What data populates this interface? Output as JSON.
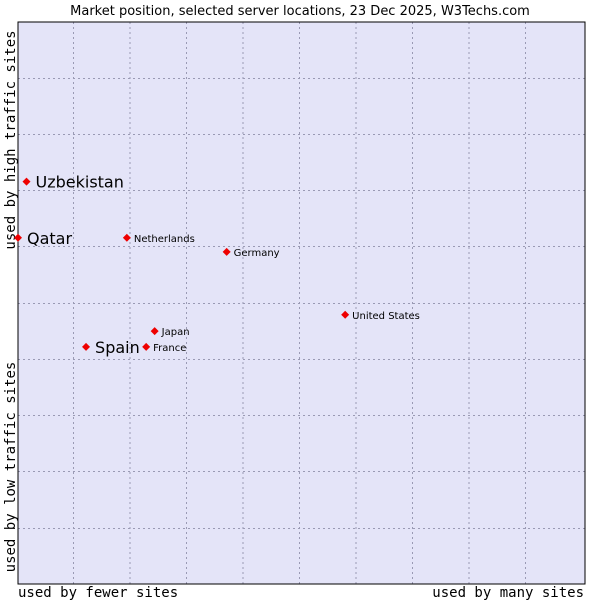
{
  "chart_data": {
    "type": "scatter",
    "title": "Market position, selected server locations, 23 Dec 2025, W3Techs.com",
    "xlabel_left": "used by fewer sites",
    "xlabel_right": "used by many sites",
    "ylabel_top": "used by high traffic sites",
    "ylabel_bottom": "used by low traffic sites",
    "xlim": [
      0,
      100
    ],
    "ylim": [
      0,
      100
    ],
    "grid": true,
    "points": [
      {
        "label": "Uzbekistan",
        "x": 1.5,
        "y": 71.6,
        "emphasis": true
      },
      {
        "label": "Qatar",
        "x": 0.0,
        "y": 61.6,
        "emphasis": true
      },
      {
        "label": "Netherlands",
        "x": 19.2,
        "y": 61.6,
        "emphasis": false
      },
      {
        "label": "Germany",
        "x": 36.8,
        "y": 59.1,
        "emphasis": false
      },
      {
        "label": "United States",
        "x": 57.7,
        "y": 47.9,
        "emphasis": false
      },
      {
        "label": "Japan",
        "x": 24.1,
        "y": 45.0,
        "emphasis": false
      },
      {
        "label": "Spain",
        "x": 12.0,
        "y": 42.2,
        "emphasis": true
      },
      {
        "label": "France",
        "x": 22.6,
        "y": 42.2,
        "emphasis": false
      }
    ]
  },
  "colors": {
    "plot_bg": "#e4e4f8",
    "grid": "#9a9ab4",
    "border": "#000000",
    "marker": "#ee0000",
    "text": "#000000"
  }
}
